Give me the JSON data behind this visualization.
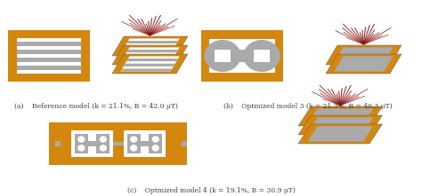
{
  "caption_a": "(a)    Reference model (k = 21.1%, B = 42.0 μT)",
  "caption_b": "(b)    Optmized model 3 (k = 21.3%, B = 40.3 μT)",
  "caption_c": "(c)    Optmized model 4 (k = 19.1%, B = 30.9 μT)",
  "bg_color": "#ffffff",
  "text_color": "#3d3d3d",
  "orange": "#d4870e",
  "gray": "#999999",
  "dark_gray": "#666666",
  "mid_gray": "#aaaaaa",
  "fig_width": 4.74,
  "fig_height": 2.21,
  "dpi": 100
}
